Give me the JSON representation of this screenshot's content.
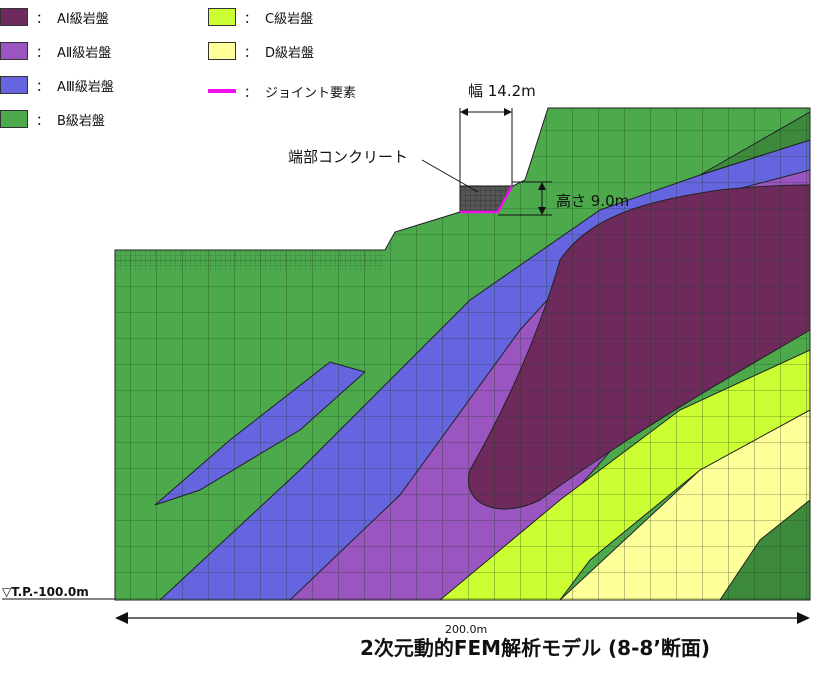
{
  "legend": [
    {
      "label": "AⅠ級岩盤",
      "color": "#6e2a5c",
      "kind": "swatch"
    },
    {
      "label": "AⅡ級岩盤",
      "color": "#9b55c0",
      "kind": "swatch"
    },
    {
      "label": "AⅢ級岩盤",
      "color": "#6565e0",
      "kind": "swatch"
    },
    {
      "label": "B級岩盤",
      "color": "#4caa4c",
      "kind": "swatch"
    },
    {
      "label": "C級岩盤",
      "color": "#ccff33",
      "kind": "swatch"
    },
    {
      "label": "D級岩盤",
      "color": "#ffff99",
      "kind": "swatch"
    },
    {
      "label": "ジョイント要素",
      "color": "#ee11ee",
      "kind": "line"
    }
  ],
  "legend_colon": "：",
  "annotations": {
    "width": "幅 14.2m",
    "height": "高さ 9.0m",
    "end_concrete": "端部コンクリート",
    "elevation": "▽T.P.-100.0m",
    "span": "200.0m"
  },
  "title": "2次元動的FEM解析モデル (8-8’断面)"
}
